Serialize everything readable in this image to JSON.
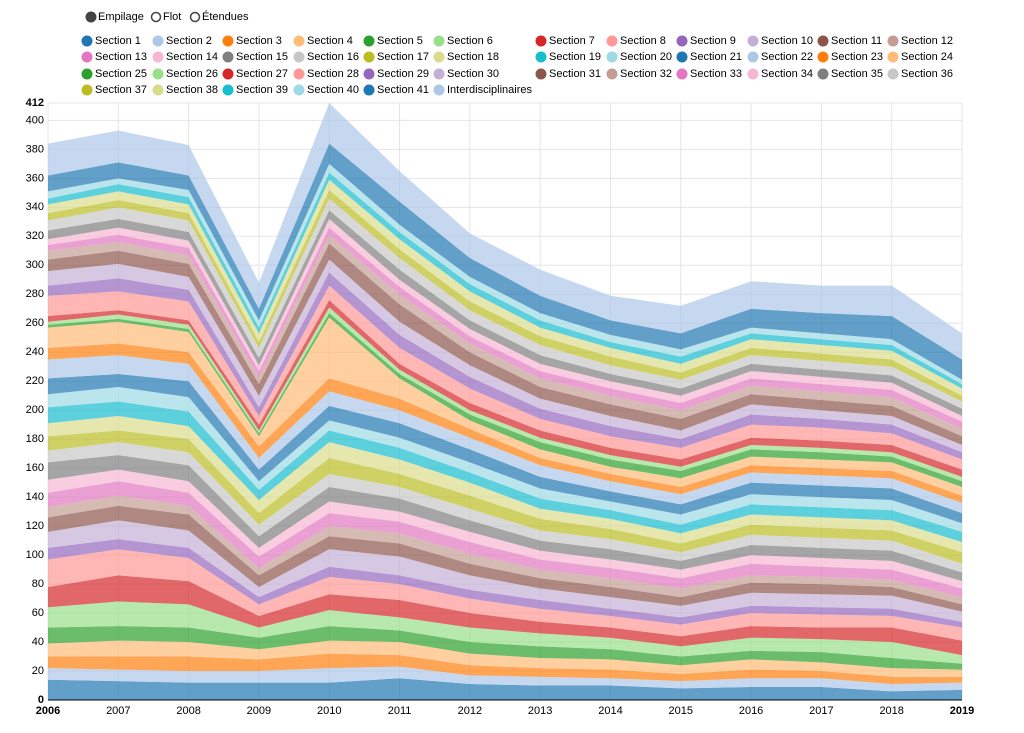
{
  "controls": [
    "Empilage",
    "Flot",
    "Étendues"
  ],
  "chart_data": {
    "type": "stacked-area",
    "x": [
      2006,
      2007,
      2008,
      2009,
      2010,
      2011,
      2012,
      2013,
      2014,
      2015,
      2016,
      2017,
      2018,
      2019
    ],
    "xlim": [
      2006,
      2019
    ],
    "xticks": [
      2006,
      2007,
      2008,
      2009,
      2010,
      2011,
      2012,
      2013,
      2014,
      2015,
      2016,
      2017,
      2018,
      2019
    ],
    "ylim": [
      0,
      412
    ],
    "yticks": [
      0,
      20,
      40,
      60,
      80,
      100,
      120,
      140,
      160,
      180,
      200,
      220,
      240,
      260,
      280,
      300,
      320,
      340,
      360,
      380,
      400,
      412
    ],
    "grid": true,
    "series": [
      {
        "name": "Section 1",
        "color": "#1f77b4",
        "values": [
          14,
          13,
          12,
          12,
          12,
          15,
          11,
          10,
          10,
          8,
          9,
          9,
          6,
          7
        ]
      },
      {
        "name": "Section 2",
        "color": "#aec7e8",
        "values": [
          8,
          8,
          8,
          8,
          10,
          8,
          6,
          6,
          5,
          5,
          6,
          6,
          5,
          5
        ]
      },
      {
        "name": "Section 3",
        "color": "#ff7f0e",
        "values": [
          8,
          9,
          10,
          8,
          10,
          8,
          7,
          6,
          6,
          5,
          6,
          5,
          5,
          4
        ]
      },
      {
        "name": "Section 4",
        "color": "#ffbb78",
        "values": [
          9,
          11,
          10,
          7,
          9,
          9,
          8,
          7,
          7,
          6,
          7,
          6,
          6,
          5
        ]
      },
      {
        "name": "Section 5",
        "color": "#2ca02c",
        "values": [
          11,
          10,
          10,
          8,
          10,
          8,
          8,
          8,
          7,
          6,
          6,
          7,
          7,
          4
        ]
      },
      {
        "name": "Section 6",
        "color": "#98df8a",
        "values": [
          14,
          17,
          16,
          7,
          11,
          9,
          10,
          9,
          8,
          7,
          9,
          9,
          11,
          6
        ]
      },
      {
        "name": "Section 7",
        "color": "#d62728",
        "values": [
          14,
          18,
          16,
          8,
          11,
          12,
          10,
          8,
          7,
          7,
          8,
          8,
          10,
          10
        ]
      },
      {
        "name": "Section 8",
        "color": "#ff9896",
        "values": [
          19,
          18,
          16,
          8,
          12,
          11,
          10,
          9,
          8,
          8,
          9,
          9,
          8,
          9
        ]
      },
      {
        "name": "Section 9",
        "color": "#9467bd",
        "values": [
          8,
          7,
          7,
          5,
          7,
          6,
          6,
          6,
          5,
          5,
          5,
          5,
          5,
          4
        ]
      },
      {
        "name": "Section 10",
        "color": "#c5b0d5",
        "values": [
          11,
          13,
          12,
          7,
          12,
          13,
          10,
          8,
          8,
          8,
          9,
          9,
          9,
          7
        ]
      },
      {
        "name": "Section 11",
        "color": "#8c564b",
        "values": [
          10,
          10,
          11,
          8,
          9,
          9,
          8,
          7,
          7,
          6,
          7,
          7,
          6,
          5
        ]
      },
      {
        "name": "Section 12",
        "color": "#c49c94",
        "values": [
          7,
          7,
          6,
          5,
          7,
          7,
          7,
          6,
          6,
          6,
          5,
          5,
          5,
          5
        ]
      },
      {
        "name": "Section 13",
        "color": "#e377c2",
        "values": [
          10,
          10,
          9,
          8,
          9,
          8,
          8,
          7,
          7,
          7,
          8,
          7,
          7,
          6
        ]
      },
      {
        "name": "Section 14",
        "color": "#f7b6d2",
        "values": [
          9,
          8,
          8,
          6,
          8,
          7,
          7,
          6,
          6,
          6,
          6,
          6,
          6,
          5
        ]
      },
      {
        "name": "Section 15",
        "color": "#7f7f7f",
        "values": [
          12,
          10,
          11,
          8,
          10,
          9,
          8,
          7,
          7,
          6,
          7,
          7,
          7,
          6
        ]
      },
      {
        "name": "Section 16",
        "color": "#c7c7c7",
        "values": [
          8,
          9,
          9,
          8,
          9,
          8,
          8,
          7,
          7,
          6,
          7,
          7,
          7,
          6
        ]
      },
      {
        "name": "Section 17",
        "color": "#bcbd22",
        "values": [
          10,
          8,
          9,
          8,
          11,
          9,
          9,
          8,
          7,
          6,
          7,
          7,
          7,
          8
        ]
      },
      {
        "name": "Section 18",
        "color": "#dbdb8d",
        "values": [
          9,
          10,
          9,
          9,
          11,
          10,
          9,
          7,
          7,
          7,
          7,
          7,
          7,
          7
        ]
      },
      {
        "name": "Section 19",
        "color": "#17becf",
        "values": [
          11,
          10,
          10,
          7,
          8,
          8,
          7,
          7,
          6,
          6,
          7,
          7,
          7,
          7
        ]
      },
      {
        "name": "Section 20",
        "color": "#9edae5",
        "values": [
          9,
          10,
          10,
          6,
          7,
          7,
          7,
          7,
          6,
          7,
          7,
          7,
          7,
          6
        ]
      },
      {
        "name": "Section 21",
        "color": "#1f77b4",
        "values": [
          11,
          9,
          11,
          8,
          10,
          10,
          9,
          8,
          7,
          7,
          8,
          8,
          8,
          7
        ]
      },
      {
        "name": "Section 22",
        "color": "#aec7e8",
        "values": [
          13,
          13,
          12,
          8,
          10,
          9,
          8,
          8,
          7,
          7,
          7,
          7,
          7,
          7
        ]
      },
      {
        "name": "Section 23",
        "color": "#ff7f0e",
        "values": [
          8,
          8,
          8,
          8,
          9,
          8,
          6,
          5,
          5,
          5,
          5,
          5,
          5,
          5
        ]
      },
      {
        "name": "Section 24",
        "color": "#ffbb78",
        "values": [
          14,
          15,
          14,
          7,
          42,
          14,
          6,
          6,
          5,
          6,
          6,
          6,
          6,
          6
        ]
      },
      {
        "name": "Section 25",
        "color": "#2ca02c",
        "values": [
          2,
          2,
          2,
          2,
          3,
          3,
          4,
          5,
          5,
          5,
          5,
          5,
          4,
          4
        ]
      },
      {
        "name": "Section 26",
        "color": "#98df8a",
        "values": [
          2,
          3,
          3,
          2,
          4,
          3,
          3,
          3,
          3,
          3,
          3,
          3,
          3,
          3
        ]
      },
      {
        "name": "Section 27",
        "color": "#d62728",
        "values": [
          4,
          3,
          3,
          4,
          5,
          4,
          5,
          5,
          5,
          5,
          5,
          5,
          5,
          5
        ]
      },
      {
        "name": "Section 28",
        "color": "#ff9896",
        "values": [
          14,
          13,
          13,
          6,
          10,
          11,
          10,
          8,
          8,
          8,
          9,
          9,
          8,
          7
        ]
      },
      {
        "name": "Section 29",
        "color": "#9467bd",
        "values": [
          7,
          9,
          8,
          6,
          9,
          9,
          8,
          7,
          7,
          6,
          7,
          6,
          6,
          5
        ]
      },
      {
        "name": "Section 30",
        "color": "#c5b0d5",
        "values": [
          10,
          10,
          9,
          8,
          9,
          9,
          8,
          7,
          7,
          6,
          7,
          6,
          6,
          5
        ]
      },
      {
        "name": "Section 31",
        "color": "#8c564b",
        "values": [
          8,
          9,
          9,
          8,
          11,
          12,
          9,
          8,
          8,
          8,
          7,
          7,
          7,
          6
        ]
      },
      {
        "name": "Section 32",
        "color": "#c49c94",
        "values": [
          6,
          6,
          6,
          5,
          6,
          7,
          6,
          6,
          6,
          6,
          6,
          6,
          6,
          5
        ]
      },
      {
        "name": "Section 33",
        "color": "#e377c2",
        "values": [
          4,
          5,
          5,
          4,
          5,
          5,
          5,
          5,
          5,
          5,
          5,
          5,
          5,
          5
        ]
      },
      {
        "name": "Section 34",
        "color": "#f7b6d2",
        "values": [
          4,
          5,
          5,
          4,
          6,
          5,
          5,
          5,
          5,
          5,
          5,
          5,
          5,
          4
        ]
      },
      {
        "name": "Section 35",
        "color": "#7f7f7f",
        "values": [
          6,
          6,
          6,
          5,
          6,
          7,
          6,
          6,
          5,
          5,
          5,
          5,
          5,
          5
        ]
      },
      {
        "name": "Section 36",
        "color": "#c7c7c7",
        "values": [
          7,
          8,
          8,
          7,
          8,
          8,
          7,
          7,
          6,
          6,
          6,
          6,
          6,
          5
        ]
      },
      {
        "name": "Section 37",
        "color": "#bcbd22",
        "values": [
          5,
          5,
          5,
          4,
          6,
          6,
          6,
          6,
          6,
          5,
          5,
          5,
          5,
          4
        ]
      },
      {
        "name": "Section 38",
        "color": "#dbdb8d",
        "values": [
          6,
          6,
          6,
          6,
          7,
          7,
          7,
          6,
          6,
          6,
          6,
          6,
          6,
          5
        ]
      },
      {
        "name": "Section 39",
        "color": "#17becf",
        "values": [
          4,
          5,
          5,
          4,
          5,
          5,
          5,
          5,
          4,
          5,
          4,
          4,
          4,
          3
        ]
      },
      {
        "name": "Section 40",
        "color": "#9edae5",
        "values": [
          5,
          4,
          5,
          5,
          6,
          5,
          5,
          5,
          5,
          5,
          4,
          4,
          4,
          3
        ]
      },
      {
        "name": "Section 41",
        "color": "#1f77b4",
        "values": [
          11,
          11,
          10,
          8,
          14,
          16,
          13,
          12,
          10,
          11,
          13,
          14,
          16,
          14
        ]
      },
      {
        "name": "Interdisciplinaires",
        "color": "#aec7e8",
        "values": [
          22,
          22,
          21,
          18,
          28,
          21,
          17,
          18,
          17,
          19,
          19,
          19,
          21,
          18
        ]
      }
    ]
  }
}
